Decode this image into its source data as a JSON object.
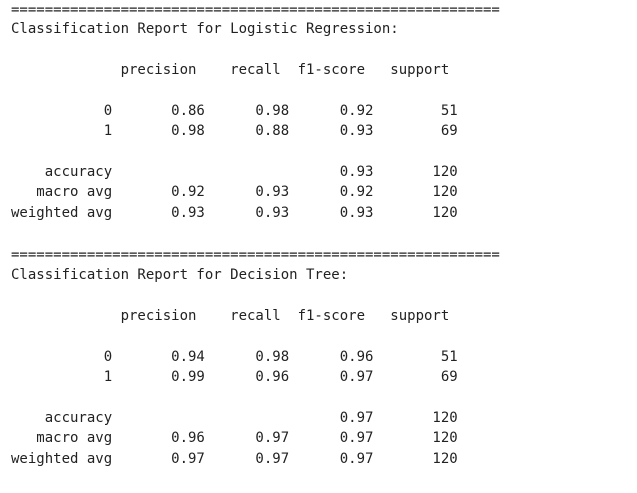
{
  "separator": "==========================================================",
  "reports": [
    {
      "title": "Classification Report for Logistic Regression:",
      "header": "             precision    recall  f1-score   support",
      "rows": [
        "           0       0.86      0.98      0.92        51",
        "           1       0.98      0.88      0.93        69",
        "    accuracy                           0.93       120",
        "   macro avg       0.92      0.93      0.92       120",
        "weighted avg       0.93      0.93      0.93       120"
      ]
    },
    {
      "title": "Classification Report for Decision Tree:",
      "header": "             precision    recall  f1-score   support",
      "rows": [
        "           0       0.94      0.98      0.96        51",
        "           1       0.99      0.96      0.97        69",
        "    accuracy                           0.97       120",
        "   macro avg       0.96      0.97      0.97       120",
        "weighted avg       0.97      0.97      0.97       120"
      ]
    }
  ]
}
